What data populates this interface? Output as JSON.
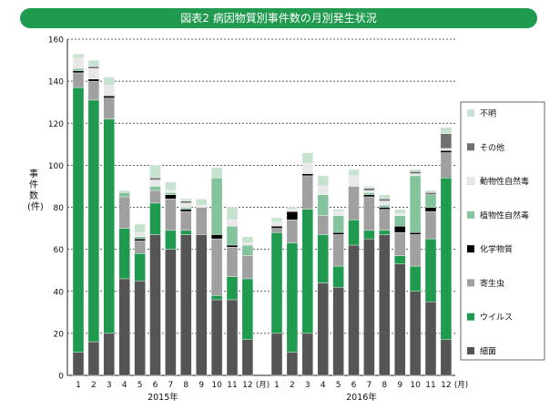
{
  "title": "図表2 病因物質別事件数の月別発生状況",
  "chart_data": {
    "type": "bar",
    "stacked": true,
    "ylabel": "事件数 (件)",
    "ylim": [
      0,
      160
    ],
    "yticks": [
      0,
      20,
      40,
      60,
      80,
      100,
      120,
      140,
      160
    ],
    "categories": [
      "1",
      "2",
      "3",
      "4",
      "5",
      "6",
      "7",
      "8",
      "9",
      "10",
      "11",
      "12",
      "1",
      "2",
      "3",
      "4",
      "5",
      "6",
      "7",
      "8",
      "9",
      "10",
      "11",
      "12"
    ],
    "month_suffix": "(月)",
    "groups": [
      {
        "label": "2015年",
        "start": 0,
        "end": 11
      },
      {
        "label": "2016年",
        "start": 12,
        "end": 23
      }
    ],
    "grid": true,
    "legend_position": "right",
    "series": [
      {
        "name": "細菌",
        "color": "#555555",
        "values": [
          11,
          16,
          20,
          46,
          45,
          67,
          60,
          67,
          67,
          36,
          36,
          17,
          20,
          11,
          20,
          44,
          42,
          62,
          65,
          67,
          53,
          40,
          35,
          17
        ]
      },
      {
        "name": "ウイルス",
        "color": "#1f9a4e",
        "values": [
          126,
          115,
          102,
          24,
          13,
          15,
          9,
          2,
          0,
          2,
          11,
          29,
          48,
          52,
          59,
          23,
          10,
          12,
          4,
          2,
          4,
          12,
          30,
          77
        ]
      },
      {
        "name": "寄生虫",
        "color": "#a0a0a0",
        "values": [
          7,
          9,
          10,
          15,
          6,
          6,
          15,
          9,
          13,
          27,
          14,
          11,
          2,
          11,
          16,
          9,
          15,
          16,
          16,
          10,
          11,
          15,
          13,
          12
        ]
      },
      {
        "name": "化学物質",
        "color": "#000000",
        "values": [
          1,
          1,
          1,
          0,
          1,
          0,
          2,
          1,
          0,
          2,
          1,
          0,
          1,
          4,
          1,
          0,
          1,
          0,
          1,
          1,
          3,
          1,
          2,
          1
        ]
      },
      {
        "name": "植物性自然毒",
        "color": "#84c49c",
        "values": [
          1,
          0,
          0,
          2,
          1,
          2,
          1,
          1,
          0,
          27,
          9,
          5,
          0,
          0,
          0,
          10,
          8,
          0,
          1,
          1,
          5,
          27,
          6,
          0
        ]
      },
      {
        "name": "動物性自然毒",
        "color": "#e8e8e8",
        "values": [
          5,
          5,
          5,
          0,
          2,
          3,
          1,
          2,
          1,
          0,
          3,
          1,
          2,
          1,
          5,
          4,
          2,
          5,
          1,
          2,
          1,
          1,
          0,
          1
        ]
      },
      {
        "name": "その他",
        "color": "#707070",
        "values": [
          0,
          1,
          0,
          0,
          0,
          1,
          0,
          1,
          0,
          0,
          0,
          0,
          0,
          0,
          0,
          0,
          0,
          0,
          1,
          1,
          0,
          1,
          1,
          7
        ]
      },
      {
        "name": "不明",
        "color": "#c7e2cf",
        "values": [
          2,
          3,
          4,
          1,
          4,
          6,
          4,
          1,
          3,
          5,
          6,
          3,
          2,
          1,
          5,
          5,
          1,
          3,
          1,
          2,
          2,
          1,
          1,
          3
        ]
      }
    ]
  }
}
